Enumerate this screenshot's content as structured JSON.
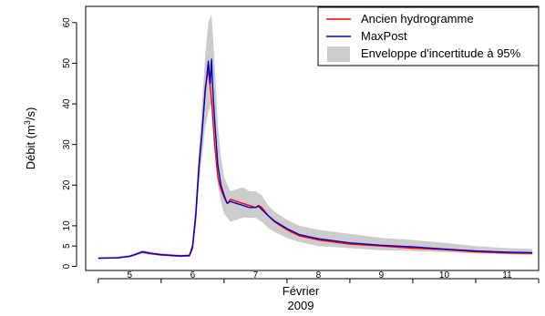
{
  "chart_data": {
    "type": "line",
    "xlabel": "Février",
    "xlabel2": "2009",
    "ylabel_prefix": "Débit (m",
    "ylabel_sup": "3",
    "ylabel_suffix": "/s)",
    "xlim": [
      4.3,
      11.5
    ],
    "ylim": [
      -1,
      64
    ],
    "xticks": [
      5,
      6,
      7,
      8,
      9,
      10,
      11
    ],
    "xtick_labels": [
      "5",
      "6",
      "7",
      "8",
      "9",
      "10",
      "11"
    ],
    "xminor_ticks": [
      4.5,
      5.5,
      6.5,
      7.5,
      8.5,
      9.5,
      10.5,
      11.5
    ],
    "yticks": [
      0,
      5,
      10,
      20,
      30,
      40,
      50,
      60
    ],
    "ytick_labels": [
      "0",
      "5",
      "10",
      "20",
      "30",
      "40",
      "50",
      "60"
    ],
    "legend_position": "top-right",
    "colors": {
      "ancien": "#ff0000",
      "maxpost": "#0000cc",
      "envelope": "#cccccc"
    },
    "legend": [
      {
        "label": "Ancien hydrogramme",
        "kind": "line",
        "color": "#ff0000"
      },
      {
        "label": "MaxPost",
        "kind": "line",
        "color": "#0000cc"
      },
      {
        "label": "Enveloppe d'incertitude à 95%",
        "kind": "box",
        "color": "#cccccc"
      }
    ],
    "series": [
      {
        "name": "Ancien hydrogramme",
        "x": [
          4.5,
          4.8,
          5.0,
          5.1,
          5.2,
          5.25,
          5.3,
          5.5,
          5.8,
          5.95,
          6.0,
          6.05,
          6.1,
          6.15,
          6.2,
          6.25,
          6.3,
          6.35,
          6.4,
          6.45,
          6.5,
          6.55,
          6.6,
          6.7,
          6.8,
          6.9,
          7.0,
          7.05,
          7.1,
          7.2,
          7.3,
          7.5,
          7.7,
          8.0,
          8.5,
          9.0,
          9.5,
          10.0,
          10.5,
          11.0,
          11.4
        ],
        "y": [
          2.0,
          2.1,
          2.5,
          3.0,
          3.5,
          3.4,
          3.2,
          2.8,
          2.5,
          2.6,
          4.5,
          12.0,
          24.0,
          33.0,
          44.0,
          48.5,
          41.0,
          30.0,
          22.0,
          19.0,
          17.0,
          15.5,
          16.5,
          16.0,
          15.5,
          15.0,
          14.5,
          15.0,
          14.5,
          12.5,
          11.0,
          9.0,
          7.5,
          6.5,
          5.5,
          5.0,
          4.5,
          4.1,
          3.6,
          3.3,
          3.2
        ]
      },
      {
        "name": "MaxPost",
        "x": [
          4.5,
          4.8,
          5.0,
          5.1,
          5.2,
          5.25,
          5.3,
          5.5,
          5.8,
          5.95,
          6.0,
          6.05,
          6.1,
          6.15,
          6.2,
          6.25,
          6.28,
          6.3,
          6.32,
          6.35,
          6.4,
          6.45,
          6.5,
          6.55,
          6.6,
          6.7,
          6.8,
          6.9,
          7.0,
          7.05,
          7.1,
          7.2,
          7.3,
          7.5,
          7.7,
          8.0,
          8.5,
          9.0,
          9.5,
          10.0,
          10.5,
          11.0,
          11.4
        ],
        "y": [
          2.0,
          2.1,
          2.5,
          3.0,
          3.6,
          3.5,
          3.3,
          2.9,
          2.6,
          2.7,
          5.0,
          13.0,
          25.0,
          33.0,
          43.0,
          50.5,
          45.0,
          51.0,
          44.0,
          36.0,
          25.0,
          20.0,
          17.5,
          15.5,
          16.0,
          15.5,
          15.0,
          14.5,
          14.5,
          14.8,
          14.0,
          12.5,
          11.2,
          9.3,
          7.8,
          6.8,
          5.8,
          5.2,
          4.8,
          4.3,
          3.8,
          3.5,
          3.4
        ]
      }
    ],
    "envelope": {
      "name": "Enveloppe d'incertitude à 95%",
      "x": [
        4.5,
        4.8,
        5.0,
        5.2,
        5.5,
        5.8,
        5.95,
        6.0,
        6.05,
        6.1,
        6.15,
        6.2,
        6.25,
        6.3,
        6.35,
        6.4,
        6.45,
        6.5,
        6.6,
        6.7,
        6.8,
        6.9,
        7.0,
        7.1,
        7.2,
        7.3,
        7.5,
        7.7,
        8.0,
        8.5,
        9.0,
        9.5,
        10.0,
        10.5,
        11.0,
        11.4
      ],
      "upper": [
        2.3,
        2.4,
        2.8,
        4.0,
        3.2,
        2.9,
        3.0,
        6.0,
        15.0,
        29.0,
        40.0,
        52.0,
        60.0,
        62.0,
        50.0,
        35.0,
        27.0,
        22.0,
        18.5,
        19.0,
        19.5,
        18.5,
        18.5,
        17.5,
        15.0,
        13.5,
        11.5,
        10.0,
        9.0,
        8.0,
        7.0,
        6.5,
        5.8,
        5.0,
        4.5,
        4.3
      ],
      "lower": [
        1.8,
        1.9,
        2.2,
        3.1,
        2.6,
        2.3,
        2.4,
        4.0,
        10.0,
        20.0,
        27.0,
        34.0,
        38.0,
        40.0,
        30.0,
        20.0,
        16.0,
        13.0,
        11.0,
        11.5,
        12.0,
        12.0,
        12.0,
        11.0,
        9.5,
        8.5,
        7.0,
        6.0,
        5.0,
        4.5,
        4.0,
        3.8,
        3.5,
        3.2,
        3.0,
        2.8
      ]
    }
  }
}
